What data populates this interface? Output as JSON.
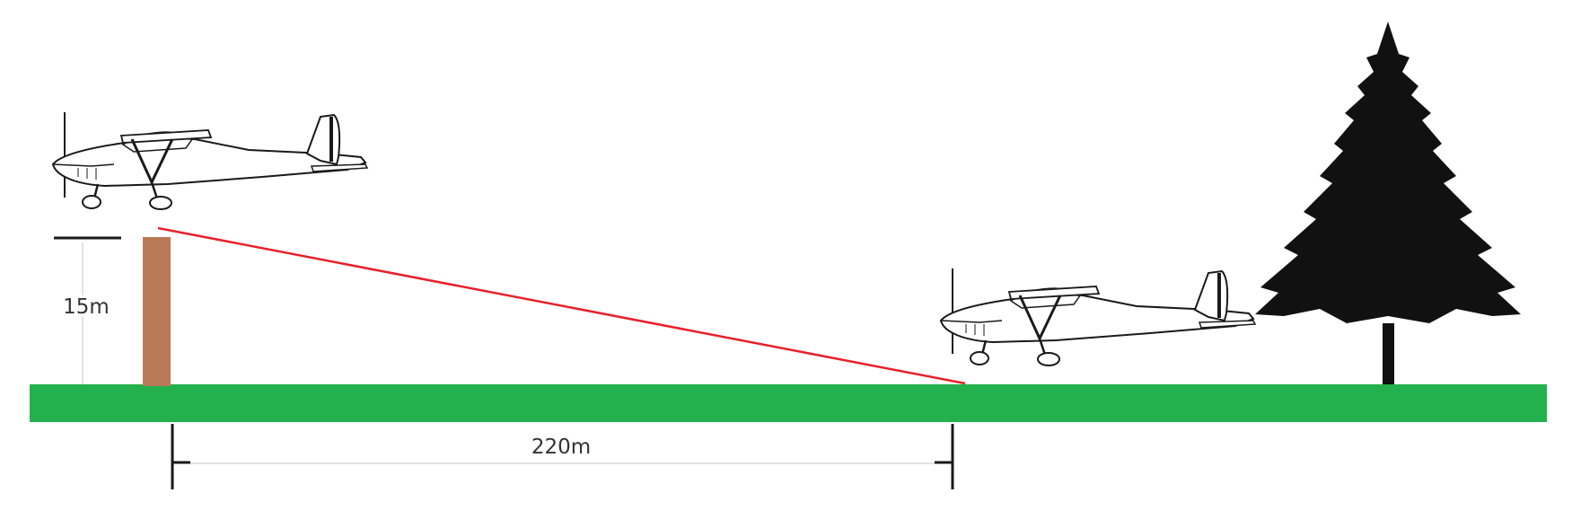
{
  "labels": {
    "obstacle_height": "15m",
    "ground_distance": "220m"
  },
  "colors": {
    "ground": "#22b14c",
    "obstacle_post": "#b97a57",
    "glide_path": "#e8202a",
    "dimension_line": "#d9d9d9",
    "tree": "#111111",
    "aircraft_outline": "#1a1a1a"
  },
  "icons": {
    "aircraft": "high-wing-light-aircraft-icon",
    "tree": "conifer-tree-icon"
  }
}
